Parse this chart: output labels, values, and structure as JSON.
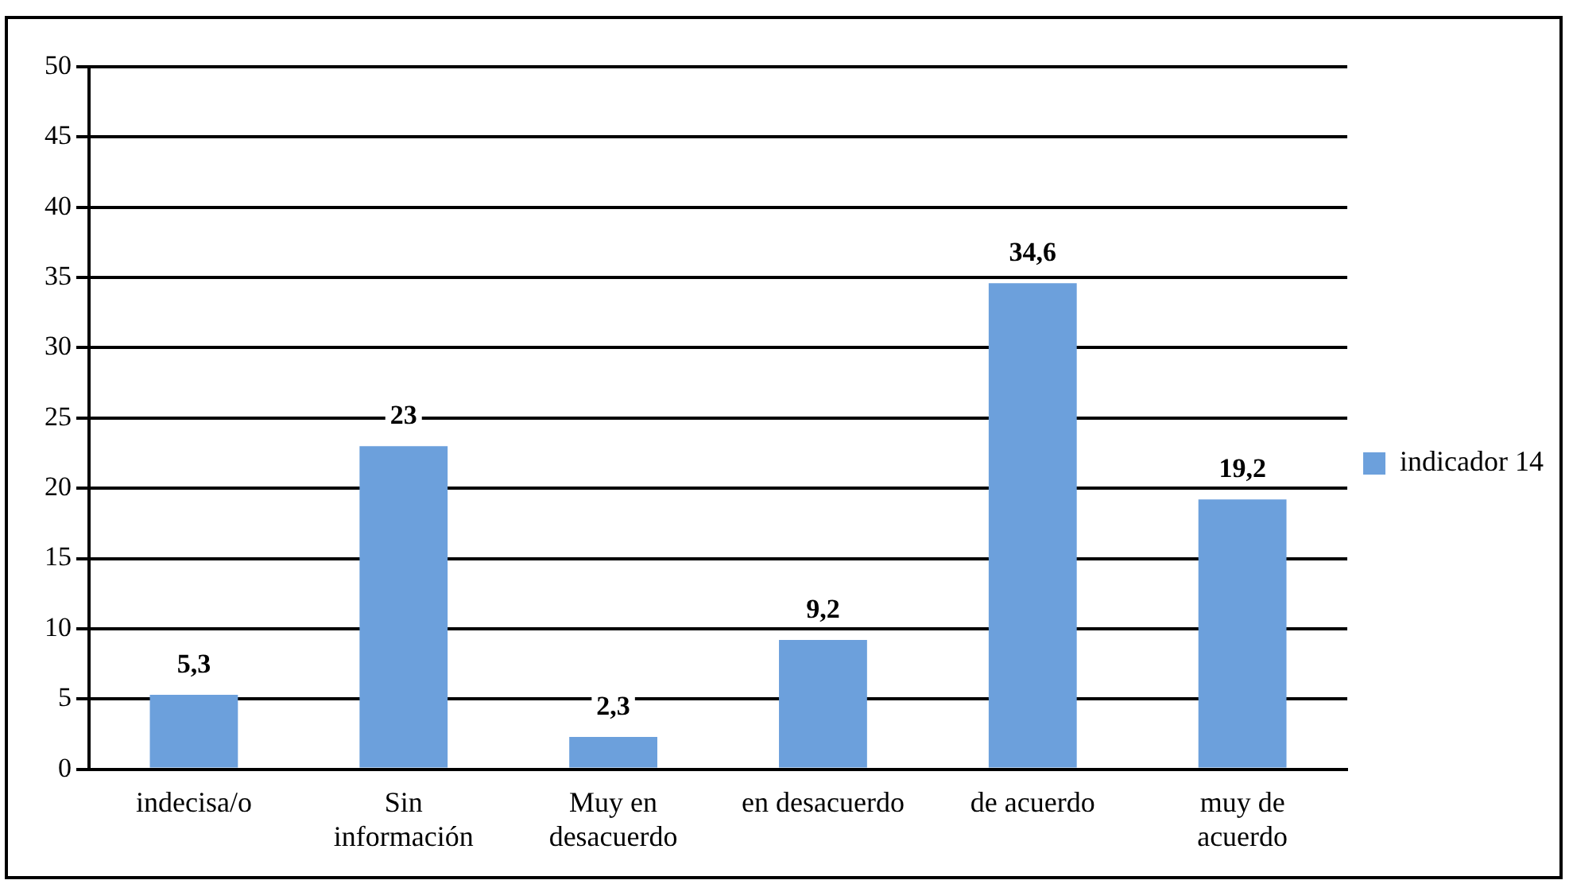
{
  "chart_data": {
    "type": "bar",
    "categories": [
      "indecisa/o",
      "Sin información",
      "Muy en desacuerdo",
      "en desacuerdo",
      "de acuerdo",
      "muy de acuerdo"
    ],
    "series": [
      {
        "name": "indicador 14",
        "color": "#6ca0dc",
        "values": [
          5.3,
          23,
          2.3,
          9.2,
          34.6,
          19.2
        ],
        "value_labels": [
          "5,3",
          "23",
          "2,3",
          "9,2",
          "34,6",
          "19,2"
        ]
      }
    ],
    "ylim": [
      0,
      50
    ],
    "yticks": [
      0,
      5,
      10,
      15,
      20,
      25,
      30,
      35,
      40,
      45,
      50
    ],
    "grid": "y",
    "legend": "right"
  }
}
